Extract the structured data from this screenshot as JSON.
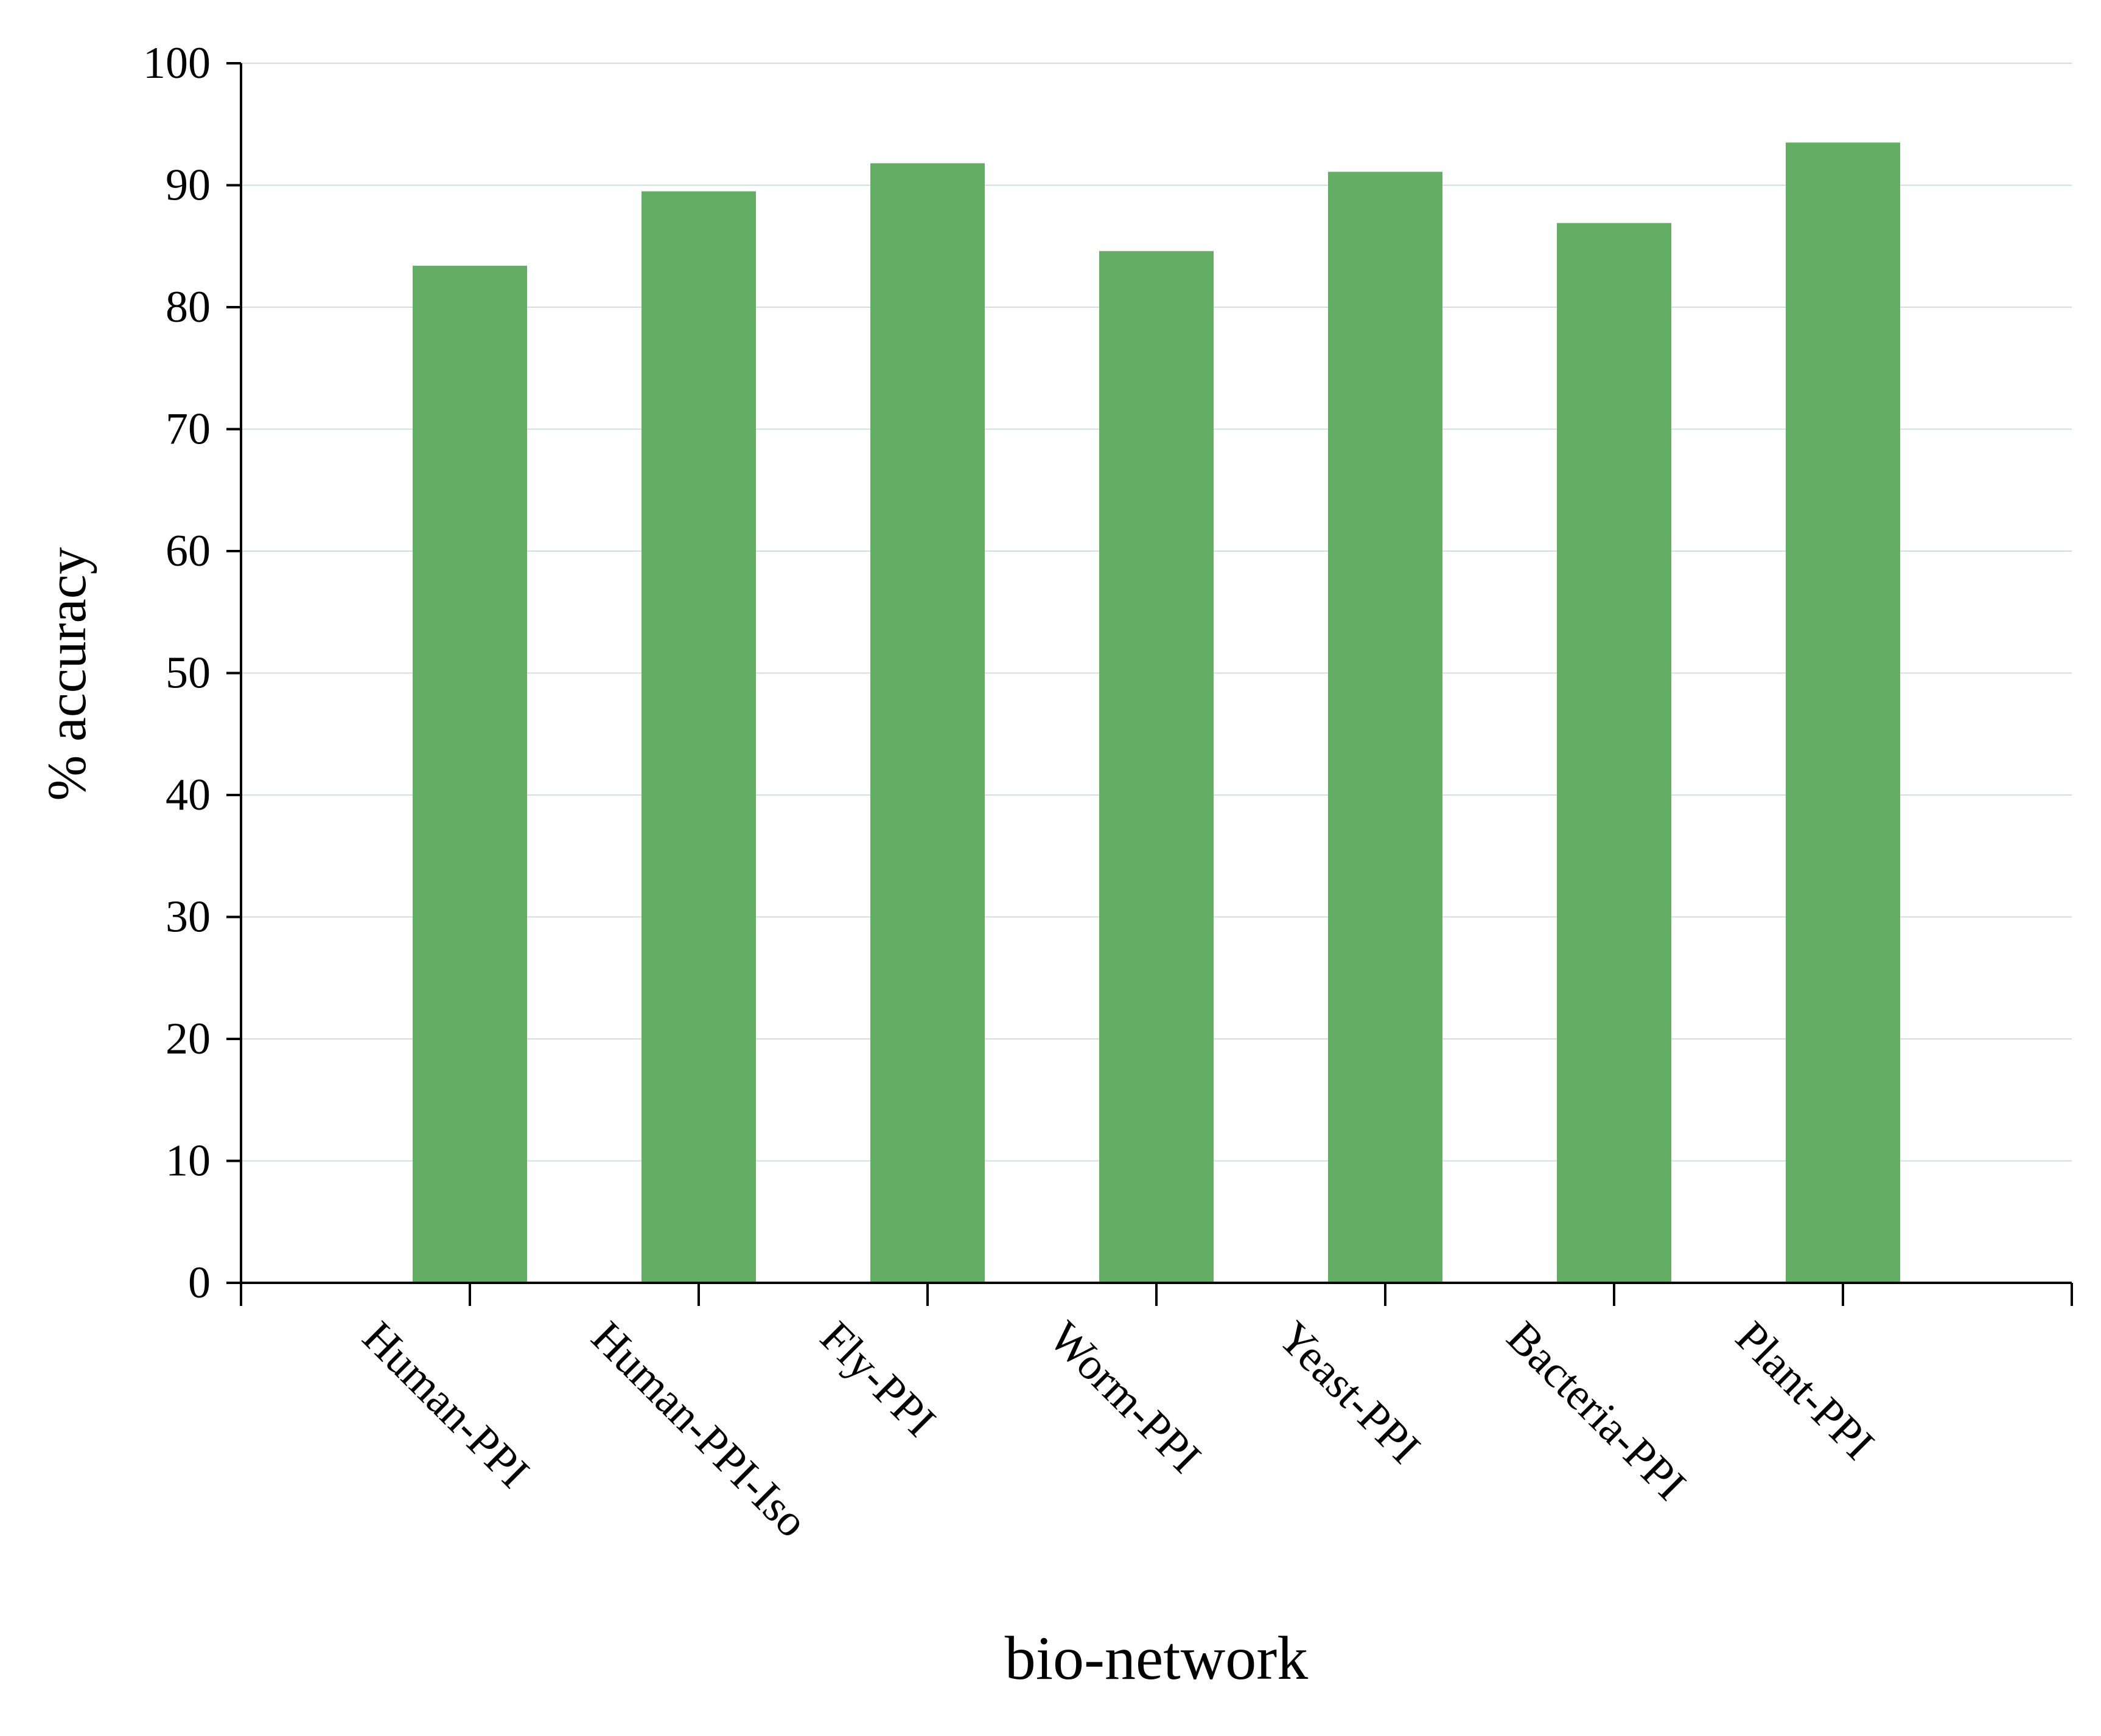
{
  "chart_data": {
    "type": "bar",
    "title": "",
    "xlabel": "bio-network",
    "ylabel": "% accuracy",
    "categories": [
      "Human-PPI",
      "Human-PPI-Iso",
      "Fly-PPI",
      "Worm-PPI",
      "Yeast-PPI",
      "Bacteria-PPI",
      "Plant-PPI"
    ],
    "values": [
      83.4,
      89.5,
      91.8,
      84.6,
      91.1,
      86.9,
      93.5
    ],
    "ylim": [
      0,
      100
    ],
    "yticks": [
      0,
      10,
      20,
      30,
      40,
      50,
      60,
      70,
      80,
      90,
      100
    ],
    "grid": true,
    "legend": "none",
    "colors": {
      "bar": "#63ad65",
      "grid": "#cfe0da",
      "axis": "#000000"
    }
  }
}
